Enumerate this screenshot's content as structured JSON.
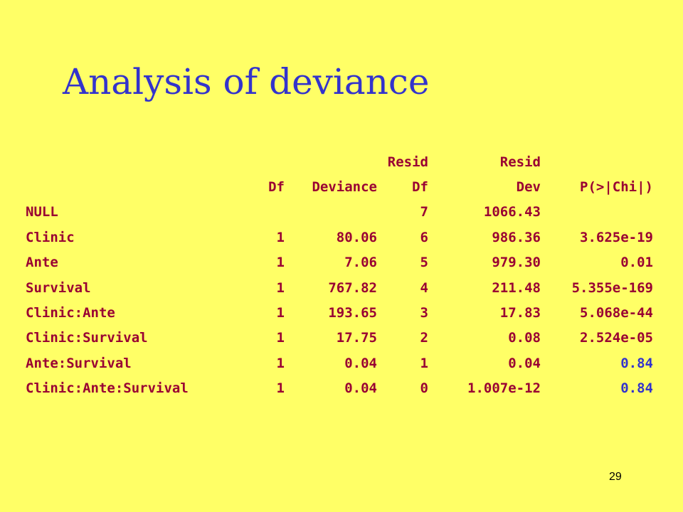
{
  "title": "Analysis of deviance",
  "table": {
    "header": {
      "line1": [
        "",
        "",
        "",
        "Resid",
        "Resid",
        ""
      ],
      "line2": [
        "",
        "Df",
        "Deviance",
        "Df",
        "Dev",
        "P(>|Chi|)"
      ]
    },
    "rows": [
      {
        "term": "NULL",
        "df": "",
        "deviance": "",
        "resid_df": "7",
        "resid_dev": "1066.43",
        "p": ""
      },
      {
        "term": "Clinic",
        "df": "1",
        "deviance": "80.06",
        "resid_df": "6",
        "resid_dev": "986.36",
        "p": "3.625e-19"
      },
      {
        "term": "Ante",
        "df": "1",
        "deviance": "7.06",
        "resid_df": "5",
        "resid_dev": "979.30",
        "p": "0.01"
      },
      {
        "term": "Survival",
        "df": "1",
        "deviance": "767.82",
        "resid_df": "4",
        "resid_dev": "211.48",
        "p": "5.355e-169"
      },
      {
        "term": "Clinic:Ante",
        "df": "1",
        "deviance": "193.65",
        "resid_df": "3",
        "resid_dev": "17.83",
        "p": "5.068e-44"
      },
      {
        "term": "Clinic:Survival",
        "df": "1",
        "deviance": "17.75",
        "resid_df": "2",
        "resid_dev": "0.08",
        "p": "2.524e-05"
      },
      {
        "term": "Ante:Survival",
        "df": "1",
        "deviance": "0.04",
        "resid_df": "1",
        "resid_dev": "0.04",
        "p": "0.84"
      },
      {
        "term": "Clinic:Ante:Survival",
        "df": "1",
        "deviance": "0.04",
        "resid_df": "0",
        "resid_dev": "1.007e-12",
        "p": "0.84"
      }
    ]
  },
  "page_number": "29",
  "colors": {
    "background": "#ffff66",
    "title": "#3333cc",
    "table_text": "#990033",
    "highlight_p": "#3333cc"
  }
}
